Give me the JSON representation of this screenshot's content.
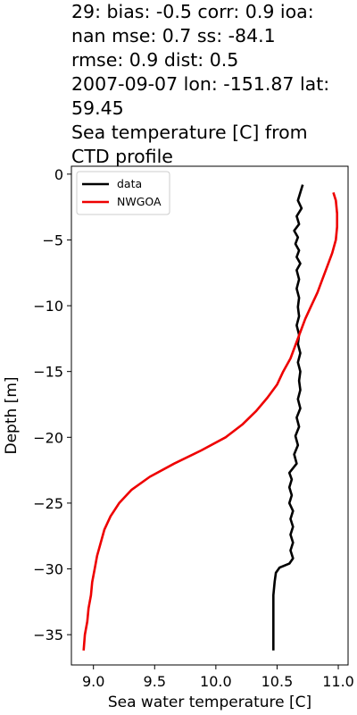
{
  "title_lines": [
    "29: bias: -0.5  corr: 0.9  ioa:",
    "nan  mse: 0.7  ss: -84.1",
    "rmse: 0.9  dist: 0.5",
    "2007-09-07 lon: -151.87 lat:",
    "59.45",
    "Sea temperature [C] from",
    "CTD profile"
  ],
  "chart_data": {
    "type": "line",
    "xlabel": "Sea water temperature [C]",
    "ylabel": "Depth [m]",
    "xlim": [
      8.82,
      11.08
    ],
    "ylim": [
      -37.3,
      0.6
    ],
    "xticks": [
      9.0,
      9.5,
      10.0,
      10.5,
      11.0
    ],
    "xtick_labels": [
      "9.0",
      "9.5",
      "10.0",
      "10.5",
      "11.0"
    ],
    "yticks": [
      0,
      -5,
      -10,
      -15,
      -20,
      -25,
      -30,
      -35
    ],
    "ytick_labels": [
      "0",
      "−5",
      "−10",
      "−15",
      "−20",
      "−25",
      "−30",
      "−35"
    ],
    "grid": false,
    "legend_position": "upper-left",
    "series": [
      {
        "name": "data",
        "color": "#000000",
        "points": [
          [
            10.71,
            -0.8
          ],
          [
            10.69,
            -1.4
          ],
          [
            10.67,
            -2.0
          ],
          [
            10.7,
            -2.6
          ],
          [
            10.66,
            -3.2
          ],
          [
            10.68,
            -3.8
          ],
          [
            10.64,
            -4.3
          ],
          [
            10.67,
            -4.8
          ],
          [
            10.65,
            -5.3
          ],
          [
            10.68,
            -5.8
          ],
          [
            10.66,
            -6.3
          ],
          [
            10.69,
            -6.8
          ],
          [
            10.66,
            -7.3
          ],
          [
            10.68,
            -8.0
          ],
          [
            10.66,
            -8.7
          ],
          [
            10.68,
            -9.4
          ],
          [
            10.67,
            -10.1
          ],
          [
            10.68,
            -10.8
          ],
          [
            10.66,
            -11.5
          ],
          [
            10.68,
            -12.2
          ],
          [
            10.67,
            -12.9
          ],
          [
            10.69,
            -13.6
          ],
          [
            10.67,
            -14.3
          ],
          [
            10.69,
            -15.0
          ],
          [
            10.68,
            -15.7
          ],
          [
            10.69,
            -16.4
          ],
          [
            10.67,
            -17.1
          ],
          [
            10.69,
            -17.8
          ],
          [
            10.66,
            -18.5
          ],
          [
            10.68,
            -19.2
          ],
          [
            10.65,
            -19.9
          ],
          [
            10.67,
            -20.6
          ],
          [
            10.64,
            -21.3
          ],
          [
            10.66,
            -22.0
          ],
          [
            10.6,
            -22.7
          ],
          [
            10.62,
            -23.2
          ],
          [
            10.6,
            -23.8
          ],
          [
            10.62,
            -24.4
          ],
          [
            10.6,
            -25.0
          ],
          [
            10.63,
            -25.6
          ],
          [
            10.61,
            -26.2
          ],
          [
            10.63,
            -26.8
          ],
          [
            10.61,
            -27.4
          ],
          [
            10.63,
            -28.0
          ],
          [
            10.61,
            -28.6
          ],
          [
            10.63,
            -29.2
          ],
          [
            10.6,
            -29.6
          ],
          [
            10.52,
            -29.9
          ],
          [
            10.49,
            -30.3
          ],
          [
            10.48,
            -31.0
          ],
          [
            10.47,
            -32.0
          ],
          [
            10.47,
            -33.0
          ],
          [
            10.47,
            -34.0
          ],
          [
            10.47,
            -35.0
          ],
          [
            10.47,
            -36.2
          ]
        ]
      },
      {
        "name": "NWGOA",
        "color": "#ee0000",
        "points": [
          [
            10.96,
            -1.4
          ],
          [
            10.98,
            -2.0
          ],
          [
            10.99,
            -3.0
          ],
          [
            10.99,
            -4.0
          ],
          [
            10.98,
            -5.0
          ],
          [
            10.95,
            -6.0
          ],
          [
            10.91,
            -7.0
          ],
          [
            10.87,
            -8.0
          ],
          [
            10.83,
            -9.0
          ],
          [
            10.78,
            -10.0
          ],
          [
            10.73,
            -11.0
          ],
          [
            10.69,
            -12.0
          ],
          [
            10.65,
            -13.0
          ],
          [
            10.61,
            -14.0
          ],
          [
            10.55,
            -15.0
          ],
          [
            10.5,
            -16.0
          ],
          [
            10.42,
            -17.0
          ],
          [
            10.33,
            -18.0
          ],
          [
            10.22,
            -19.0
          ],
          [
            10.08,
            -20.0
          ],
          [
            9.88,
            -21.0
          ],
          [
            9.66,
            -22.0
          ],
          [
            9.46,
            -23.0
          ],
          [
            9.31,
            -24.0
          ],
          [
            9.21,
            -25.0
          ],
          [
            9.14,
            -26.0
          ],
          [
            9.09,
            -27.0
          ],
          [
            9.06,
            -28.0
          ],
          [
            9.03,
            -29.0
          ],
          [
            9.01,
            -30.0
          ],
          [
            8.99,
            -31.0
          ],
          [
            8.98,
            -32.0
          ],
          [
            8.96,
            -33.0
          ],
          [
            8.95,
            -34.0
          ],
          [
            8.93,
            -35.0
          ],
          [
            8.92,
            -36.2
          ]
        ]
      }
    ]
  }
}
